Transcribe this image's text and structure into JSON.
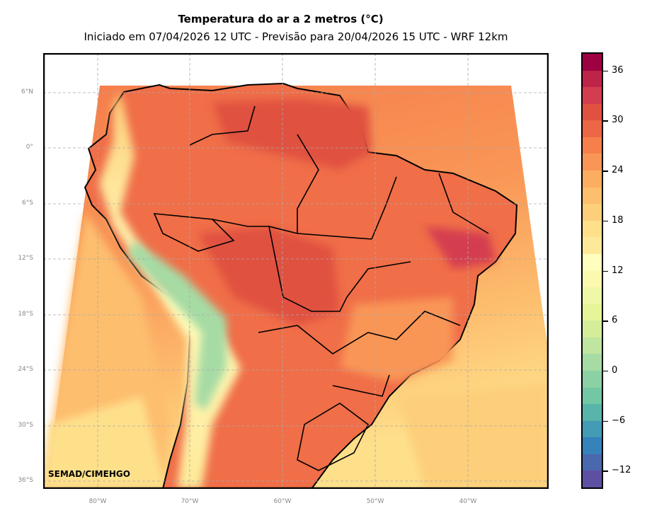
{
  "title": "Temperatura do ar a 2 metros (°C)",
  "subtitle": "Iniciado em 07/04/2026 12 UTC - Previsão para 20/04/2026 15 UTC - WRF 12km",
  "credit": "SEMAD/CIMEHGO",
  "lat_labels": [
    "6°N",
    "0°",
    "6°S",
    "12°S",
    "18°S",
    "24°S",
    "30°S",
    "36°S"
  ],
  "lon_labels": [
    "80°W",
    "70°W",
    "60°W",
    "50°W",
    "40°W"
  ],
  "colorbar": {
    "min": -14,
    "max": 38,
    "step": 2,
    "ticks": [
      "36",
      "30",
      "24",
      "18",
      "12",
      "6",
      "0",
      "−6",
      "−12"
    ],
    "tick_values": [
      36,
      30,
      24,
      18,
      12,
      6,
      0,
      -6,
      -12
    ],
    "colors": [
      "#5e4fa2",
      "#4a68ae",
      "#3682ba",
      "#439bb5",
      "#59b4aa",
      "#72c8a4",
      "#8cd1a4",
      "#a6dba4",
      "#bfe5a0",
      "#d4ed9b",
      "#e6f598",
      "#eff8a6",
      "#fbf8b0",
      "#fffebe",
      "#fee999",
      "#fee08b",
      "#fdcf7a",
      "#fdbe6e",
      "#fdad60",
      "#f99656",
      "#f67f4b",
      "#ed6645",
      "#e0513f",
      "#d43d4f",
      "#be2348",
      "#9e0142"
    ]
  }
}
